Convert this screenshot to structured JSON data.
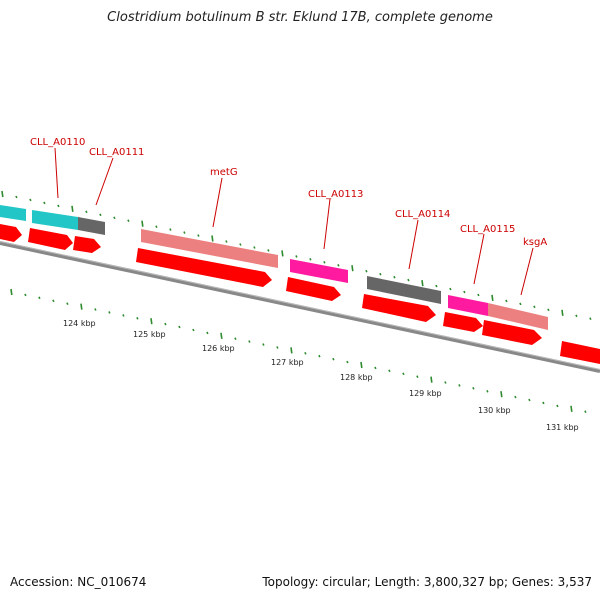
{
  "title": "Clostridium botulinum B str. Eklund 17B, complete genome",
  "footer": {
    "accession": "Accession: NC_010674",
    "info": "Topology: circular; Length: 3,800,327 bp; Genes: 3,537"
  },
  "colors": {
    "backbone": "#8a8a8a",
    "tick": "#2e8b2e",
    "label": "#cc0000",
    "cds_arrow": "#ff0000",
    "cds_cyan": "#22c6c6",
    "cds_gray": "#666666",
    "cds_salmon": "#ec8080",
    "cds_magenta": "#ff1aa0"
  },
  "gene_labels": [
    {
      "name": "CLL_A0110"
    },
    {
      "name": "CLL_A0111"
    },
    {
      "name": "metG"
    },
    {
      "name": "CLL_A0113"
    },
    {
      "name": "CLL_A0114"
    },
    {
      "name": "CLL_A0115"
    },
    {
      "name": "ksgA"
    }
  ],
  "kbp_labels": [
    {
      "text": "124 kbp"
    },
    {
      "text": "125 kbp"
    },
    {
      "text": "126 kbp"
    },
    {
      "text": "127 kbp"
    },
    {
      "text": "128 kbp"
    },
    {
      "text": "129 kbp"
    },
    {
      "text": "130 kbp"
    },
    {
      "text": "131 kbp"
    }
  ]
}
